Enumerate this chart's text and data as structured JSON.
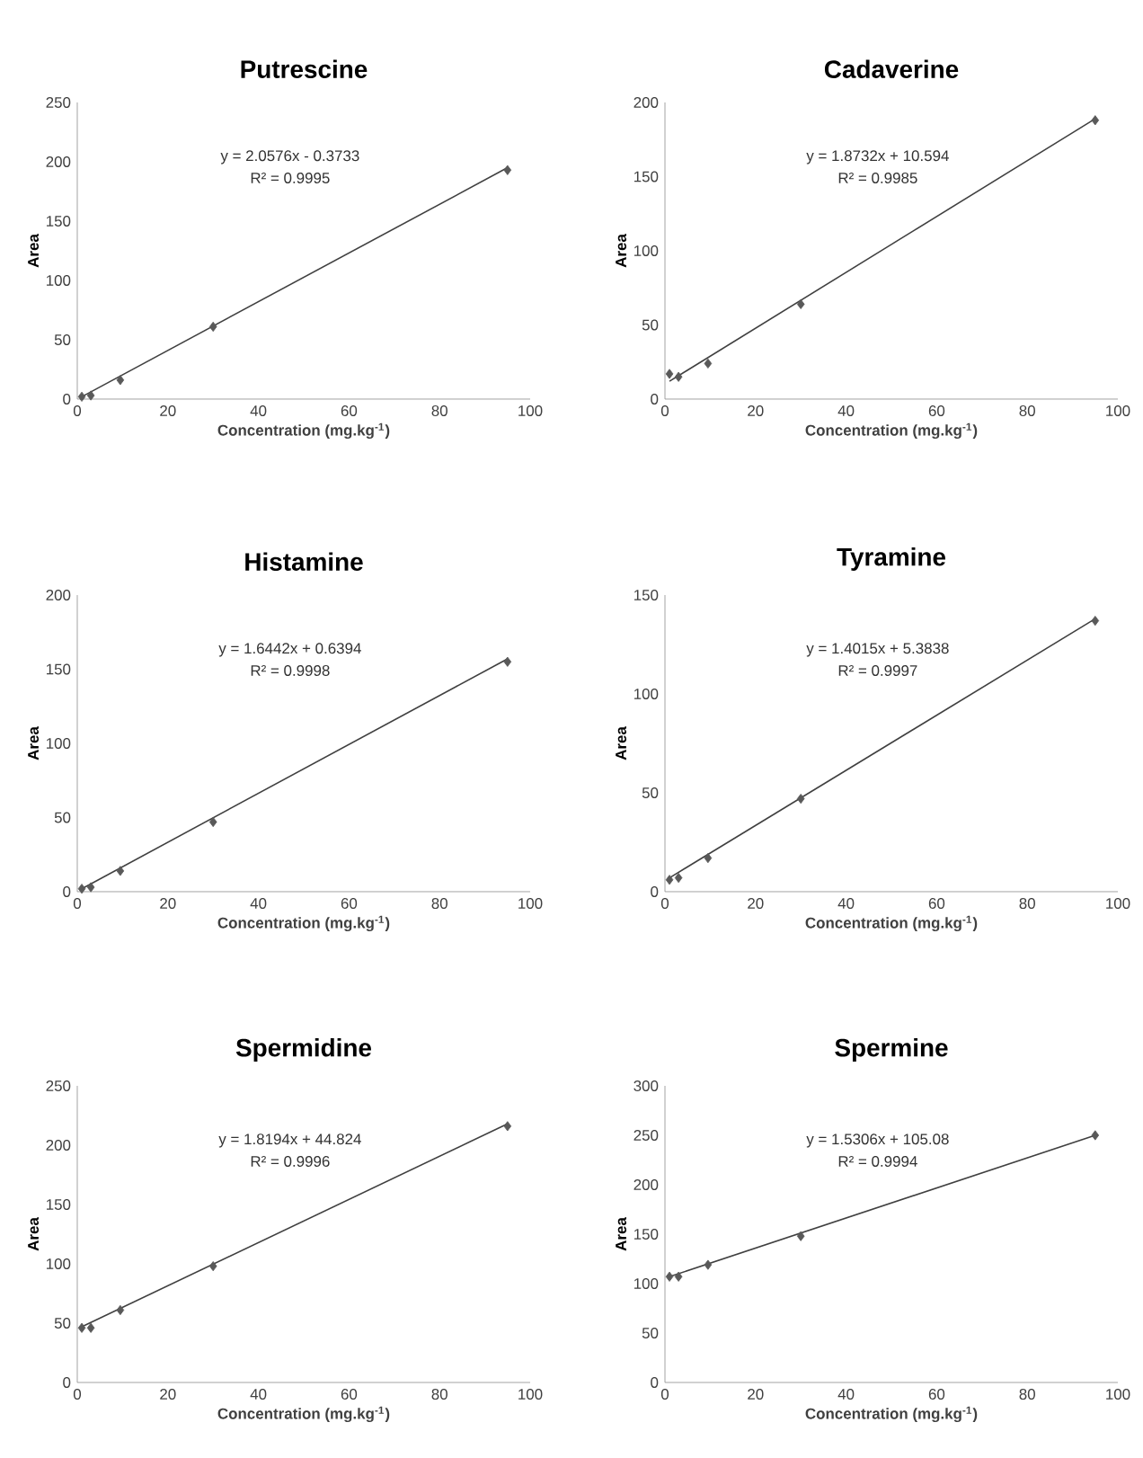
{
  "chart_data": [
    {
      "type": "scatter",
      "title": "Putrescine",
      "xlabel": "Concentration (mg.kg$^{-1}$)",
      "ylabel": "Area",
      "xlim": [
        0,
        100
      ],
      "xticks": [
        0,
        20,
        40,
        60,
        80,
        100
      ],
      "ylim": [
        0,
        250
      ],
      "yticks": [
        0,
        50,
        100,
        150,
        200,
        250
      ],
      "marker": "diamond",
      "grid": false,
      "series": [
        {
          "color": "#595959",
          "x": [
            1,
            3,
            9.5,
            30,
            95
          ],
          "values": [
            2,
            3,
            16,
            61,
            193
          ]
        },
        {
          "type": "line",
          "marker": "none",
          "color": "#404040",
          "x": [
            1,
            95
          ],
          "values": [
            2,
            195
          ]
        }
      ],
      "annotations": [
        "y = 2.0576x - 0.3733",
        "R² = 0.9995"
      ]
    },
    {
      "type": "scatter",
      "title": "Cadaverine",
      "xlabel": "Concentration (mg.kg$^{-1}$)",
      "ylabel": "Area",
      "xlim": [
        0,
        100
      ],
      "xticks": [
        0,
        20,
        40,
        60,
        80,
        100
      ],
      "ylim": [
        0,
        200
      ],
      "yticks": [
        0,
        50,
        100,
        150,
        200
      ],
      "marker": "diamond",
      "grid": false,
      "series": [
        {
          "color": "#595959",
          "x": [
            1,
            3,
            9.5,
            30,
            95
          ],
          "values": [
            17,
            15,
            24,
            64,
            188
          ]
        },
        {
          "type": "line",
          "marker": "none",
          "color": "#404040",
          "x": [
            1,
            95
          ],
          "values": [
            12,
            189
          ]
        }
      ],
      "annotations": [
        "y = 1.8732x + 10.594",
        "R² = 0.9985"
      ]
    },
    {
      "type": "scatter",
      "title": "Histamine",
      "xlabel": "Concentration (mg.kg$^{-1}$)",
      "ylabel": "Area",
      "xlim": [
        0,
        100
      ],
      "xticks": [
        0,
        20,
        40,
        60,
        80,
        100
      ],
      "ylim": [
        0,
        200
      ],
      "yticks": [
        0,
        50,
        100,
        150,
        200
      ],
      "marker": "diamond",
      "grid": false,
      "series": [
        {
          "color": "#595959",
          "x": [
            1,
            3,
            9.5,
            30,
            95
          ],
          "values": [
            2,
            3,
            14,
            47,
            155
          ]
        },
        {
          "type": "line",
          "marker": "none",
          "color": "#404040",
          "x": [
            1,
            95
          ],
          "values": [
            2,
            157
          ]
        }
      ],
      "annotations": [
        "y = 1.6442x + 0.6394",
        "R² = 0.9998"
      ]
    },
    {
      "type": "scatter",
      "title": "Tyramine",
      "xlabel": "Concentration (mg.kg$^{-1}$)",
      "ylabel": "Area",
      "xlim": [
        0,
        100
      ],
      "xticks": [
        0,
        20,
        40,
        60,
        80,
        100
      ],
      "ylim": [
        0,
        150
      ],
      "yticks": [
        0,
        50,
        100,
        150
      ],
      "marker": "diamond",
      "grid": false,
      "series": [
        {
          "color": "#595959",
          "x": [
            1,
            3,
            9.5,
            30,
            95
          ],
          "values": [
            6,
            7,
            17,
            47,
            137
          ]
        },
        {
          "type": "line",
          "marker": "none",
          "color": "#404040",
          "x": [
            1,
            95
          ],
          "values": [
            7,
            138
          ]
        }
      ],
      "annotations": [
        "y = 1.4015x + 5.3838",
        "R² = 0.9997"
      ]
    },
    {
      "type": "scatter",
      "title": "Spermidine",
      "xlabel": "Concentration (mg.kg$^{-1}$)",
      "ylabel": "Area",
      "xlim": [
        0,
        100
      ],
      "xticks": [
        0,
        20,
        40,
        60,
        80,
        100
      ],
      "ylim": [
        0,
        250
      ],
      "yticks": [
        0,
        50,
        100,
        150,
        200,
        250
      ],
      "marker": "diamond",
      "grid": false,
      "series": [
        {
          "color": "#595959",
          "x": [
            1,
            3,
            9.5,
            30,
            95
          ],
          "values": [
            46,
            46,
            61,
            98,
            216
          ]
        },
        {
          "type": "line",
          "marker": "none",
          "color": "#404040",
          "x": [
            1,
            95
          ],
          "values": [
            47,
            218
          ]
        }
      ],
      "annotations": [
        "y = 1.8194x + 44.824",
        "R² = 0.9996"
      ]
    },
    {
      "type": "scatter",
      "title": "Spermine",
      "xlabel": "Concentration (mg.kg$^{-1}$)",
      "ylabel": "Area",
      "xlim": [
        0,
        100
      ],
      "xticks": [
        0,
        20,
        40,
        60,
        80,
        100
      ],
      "ylim": [
        0,
        300
      ],
      "yticks": [
        0,
        50,
        100,
        150,
        200,
        250,
        300
      ],
      "marker": "diamond",
      "grid": false,
      "series": [
        {
          "color": "#595959",
          "x": [
            1,
            3,
            9.5,
            30,
            95
          ],
          "values": [
            107,
            107,
            119,
            148,
            250
          ]
        },
        {
          "type": "line",
          "marker": "none",
          "color": "#404040",
          "x": [
            1,
            95
          ],
          "values": [
            107,
            250
          ]
        }
      ],
      "annotations": [
        "y = 1.5306x + 105.08",
        "R² = 0.9994"
      ]
    }
  ]
}
